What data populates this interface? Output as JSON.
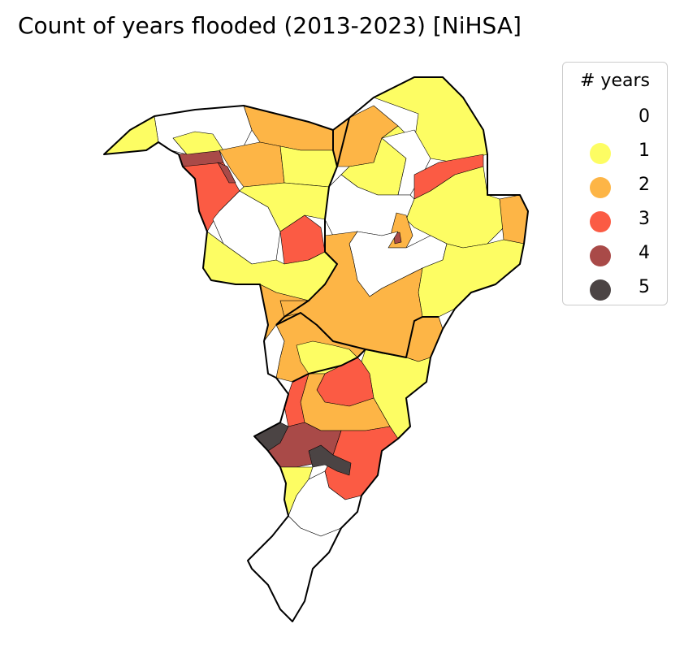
{
  "title": "Count of years flooded (2013-2023) [NiHSA]",
  "legend": {
    "title": "# years",
    "items": [
      {
        "label": "0",
        "color": "#ffffff"
      },
      {
        "label": "1",
        "color": "#fdfd63"
      },
      {
        "label": "2",
        "color": "#fdb546"
      },
      {
        "label": "3",
        "color": "#fb5b44"
      },
      {
        "label": "4",
        "color": "#a94a48"
      },
      {
        "label": "5",
        "color": "#4b4444"
      }
    ]
  },
  "chart_data": {
    "type": "choropleth",
    "title": "Count of years flooded (2013-2023) [NiHSA]",
    "legend_title": "# years",
    "classes": [
      0,
      1,
      2,
      3,
      4,
      5
    ],
    "legend_placement": "top-right"
  }
}
